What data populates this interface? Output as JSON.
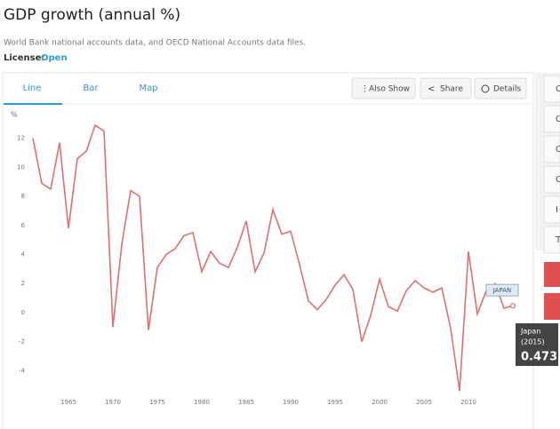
{
  "header": {
    "title": "GDP growth (annual %)",
    "subtitle": "World Bank national accounts data, and OECD National Accounts data files.",
    "license_label": "License:",
    "license_value": "Open"
  },
  "tabs": [
    "Line",
    "Bar",
    "Map"
  ],
  "buttons": [
    "Also Show",
    "Share",
    "Details"
  ],
  "sidebar_items": [
    "C",
    "C",
    "C",
    "C",
    "I",
    "T"
  ],
  "tooltip": {
    "name": "Japan",
    "year_label": "(2015)"
  },
  "chart_data": {
    "type": "line",
    "y_label": "%",
    "x": [
      1961,
      1962,
      1963,
      1964,
      1965,
      1966,
      1967,
      1968,
      1969,
      1970,
      1971,
      1972,
      1973,
      1974,
      1975,
      1976,
      1977,
      1978,
      1979,
      1980,
      1981,
      1982,
      1983,
      1984,
      1985,
      1986,
      1987,
      1988,
      1989,
      1990,
      1991,
      1992,
      1993,
      1994,
      1995,
      1996,
      1997,
      1998,
      1999,
      2000,
      2001,
      2002,
      2003,
      2004,
      2005,
      2006,
      2007,
      2008,
      2009,
      2010,
      2011,
      2012,
      2013,
      2014,
      2015
    ],
    "series": [
      {
        "name": "JAPAN",
        "color": "#e07070",
        "values": [
          12.0,
          8.9,
          8.5,
          11.7,
          5.8,
          10.6,
          11.1,
          12.9,
          12.5,
          -1.0,
          4.7,
          8.4,
          8.0,
          -1.2,
          3.1,
          4.0,
          4.4,
          5.3,
          5.5,
          2.8,
          4.2,
          3.4,
          3.1,
          4.5,
          6.3,
          2.8,
          4.1,
          7.1,
          5.4,
          5.6,
          3.3,
          0.8,
          0.2,
          0.9,
          1.9,
          2.6,
          1.6,
          -2.0,
          -0.2,
          2.3,
          0.4,
          0.1,
          1.5,
          2.2,
          1.7,
          1.4,
          1.7,
          -1.1,
          -5.4,
          4.2,
          -0.1,
          1.5,
          2.0,
          0.3,
          0.473
        ]
      }
    ],
    "xlim": [
      1960,
      2016
    ],
    "xticks": [
      1965,
      1970,
      1975,
      1980,
      1985,
      1990,
      1995,
      2000,
      2005,
      2010
    ],
    "ylim": [
      -6,
      14
    ],
    "yticks": [
      -4,
      -2,
      0,
      2,
      4,
      6,
      8,
      10,
      12
    ],
    "grid": false
  }
}
